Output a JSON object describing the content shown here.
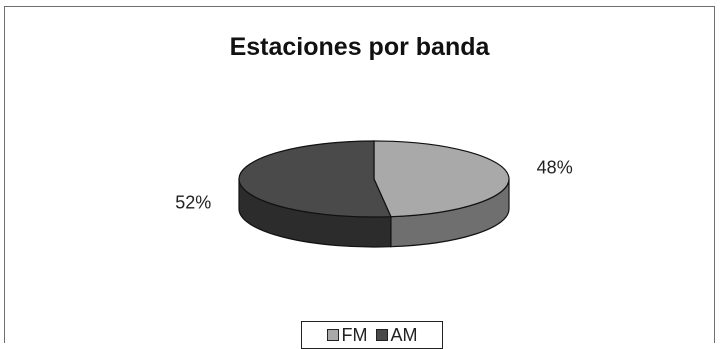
{
  "chart_data": {
    "type": "pie",
    "title": "Estaciones por banda",
    "slices": [
      {
        "label": "FM",
        "value": 48,
        "value_label": "48%",
        "color": "#a9a9a9",
        "side_color": "#6f6f6f"
      },
      {
        "label": "AM",
        "value": 52,
        "value_label": "52%",
        "color": "#4a4a4a",
        "side_color": "#2c2c2c"
      }
    ],
    "legend_position": "bottom"
  }
}
